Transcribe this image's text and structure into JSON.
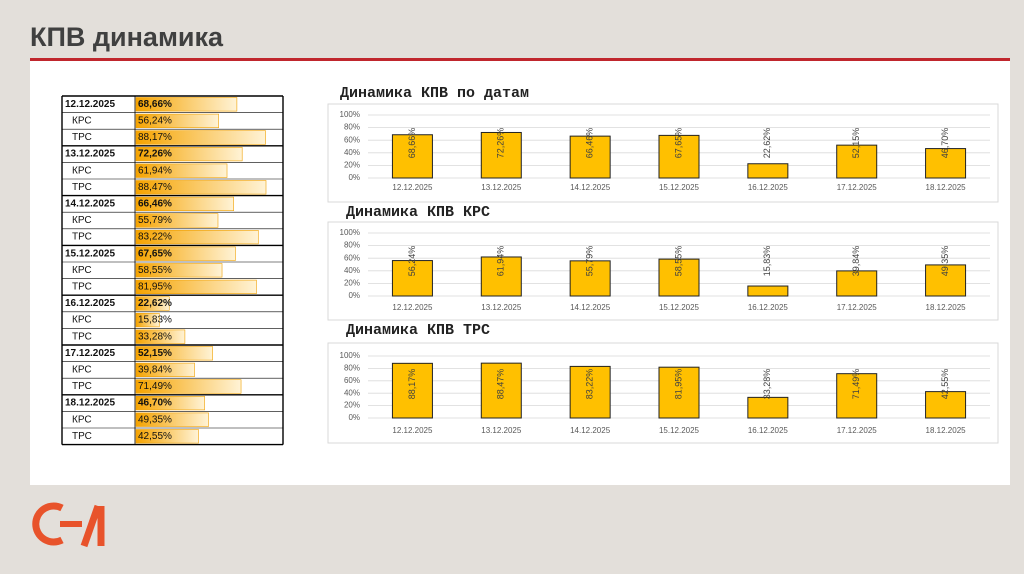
{
  "title": "КПВ динамика",
  "table": {
    "groups": [
      {
        "date": "12.12.2025",
        "value": 68.66,
        "value_label": "68,66%",
        "rows": [
          {
            "label": "КРС",
            "value": 56.24,
            "value_label": "56,24%"
          },
          {
            "label": "ТРС",
            "value": 88.17,
            "value_label": "88,17%"
          }
        ]
      },
      {
        "date": "13.12.2025",
        "value": 72.26,
        "value_label": "72,26%",
        "rows": [
          {
            "label": "КРС",
            "value": 61.94,
            "value_label": "61,94%"
          },
          {
            "label": "ТРС",
            "value": 88.47,
            "value_label": "88,47%"
          }
        ]
      },
      {
        "date": "14.12.2025",
        "value": 66.46,
        "value_label": "66,46%",
        "rows": [
          {
            "label": "КРС",
            "value": 55.79,
            "value_label": "55,79%"
          },
          {
            "label": "ТРС",
            "value": 83.22,
            "value_label": "83,22%"
          }
        ]
      },
      {
        "date": "15.12.2025",
        "value": 67.65,
        "value_label": "67,65%",
        "rows": [
          {
            "label": "КРС",
            "value": 58.55,
            "value_label": "58,55%"
          },
          {
            "label": "ТРС",
            "value": 81.95,
            "value_label": "81,95%"
          }
        ]
      },
      {
        "date": "16.12.2025",
        "value": 22.62,
        "value_label": "22,62%",
        "rows": [
          {
            "label": "КРС",
            "value": 15.83,
            "value_label": "15,83%"
          },
          {
            "label": "ТРС",
            "value": 33.28,
            "value_label": "33,28%"
          }
        ]
      },
      {
        "date": "17.12.2025",
        "value": 52.15,
        "value_label": "52,15%",
        "rows": [
          {
            "label": "КРС",
            "value": 39.84,
            "value_label": "39,84%"
          },
          {
            "label": "ТРС",
            "value": 71.49,
            "value_label": "71,49%"
          }
        ]
      },
      {
        "date": "18.12.2025",
        "value": 46.7,
        "value_label": "46,70%",
        "rows": [
          {
            "label": "КРС",
            "value": 49.35,
            "value_label": "49,35%"
          },
          {
            "label": "ТРС",
            "value": 42.55,
            "value_label": "42,55%"
          }
        ]
      }
    ]
  },
  "chart_data": [
    {
      "type": "bar",
      "title": "Динамика КПВ по датам",
      "categories": [
        "12.12.2025",
        "13.12.2025",
        "14.12.2025",
        "15.12.2025",
        "16.12.2025",
        "17.12.2025",
        "18.12.2025"
      ],
      "values": [
        68.66,
        72.26,
        66.46,
        67.65,
        22.62,
        52.15,
        46.7
      ],
      "value_labels": [
        "68,66%",
        "72,26%",
        "66,46%",
        "67,65%",
        "22,62%",
        "52,15%",
        "46,70%"
      ],
      "color": "#ffc000",
      "ylim": [
        0,
        100
      ],
      "yticks": [
        {
          "value": 0,
          "label": "0%"
        },
        {
          "value": 20,
          "label": "20%"
        },
        {
          "value": 40,
          "label": "40%"
        },
        {
          "value": 60,
          "label": "60%"
        },
        {
          "value": 80,
          "label": "80%"
        },
        {
          "value": 100,
          "label": "100%"
        }
      ],
      "grid": true
    },
    {
      "type": "bar",
      "title": "Динамика КПВ КРС",
      "categories": [
        "12.12.2025",
        "13.12.2025",
        "14.12.2025",
        "15.12.2025",
        "16.12.2025",
        "17.12.2025",
        "18.12.2025"
      ],
      "values": [
        56.24,
        61.94,
        55.79,
        58.55,
        15.83,
        39.84,
        49.35
      ],
      "value_labels": [
        "56,24%",
        "61,94%",
        "55,79%",
        "58,55%",
        "15,83%",
        "39,84%",
        "49,35%"
      ],
      "color": "#ffc000",
      "ylim": [
        0,
        100
      ],
      "yticks": [
        {
          "value": 0,
          "label": "0%"
        },
        {
          "value": 20,
          "label": "20%"
        },
        {
          "value": 40,
          "label": "40%"
        },
        {
          "value": 60,
          "label": "60%"
        },
        {
          "value": 80,
          "label": "80%"
        },
        {
          "value": 100,
          "label": "100%"
        }
      ],
      "grid": true
    },
    {
      "type": "bar",
      "title": "Динамика КПВ ТРС",
      "categories": [
        "12.12.2025",
        "13.12.2025",
        "14.12.2025",
        "15.12.2025",
        "16.12.2025",
        "17.12.2025",
        "18.12.2025"
      ],
      "values": [
        88.17,
        88.47,
        83.22,
        81.95,
        33.28,
        71.49,
        42.55
      ],
      "value_labels": [
        "88,17%",
        "88,47%",
        "83,22%",
        "81,95%",
        "33,28%",
        "71,49%",
        "42,55%"
      ],
      "color": "#ffc000",
      "ylim": [
        0,
        100
      ],
      "yticks": [
        {
          "value": 0,
          "label": "0%"
        },
        {
          "value": 20,
          "label": "20%"
        },
        {
          "value": 40,
          "label": "40%"
        },
        {
          "value": 60,
          "label": "60%"
        },
        {
          "value": 80,
          "label": "80%"
        },
        {
          "value": 100,
          "label": "100%"
        }
      ],
      "grid": true
    }
  ]
}
